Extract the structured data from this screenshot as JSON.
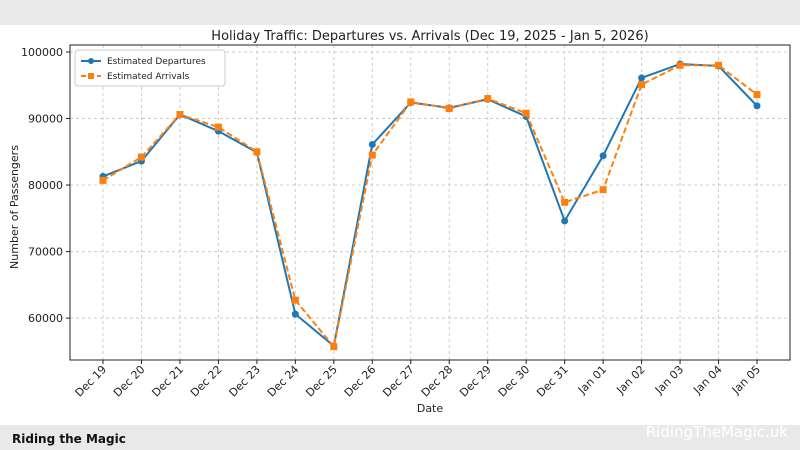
{
  "chart_data": {
    "type": "line",
    "title": "Holiday Traffic: Departures vs. Arrivals (Dec 19, 2025 - Jan 5, 2026)",
    "x_label": "Date",
    "y_label": "Number of Passengers",
    "categories": [
      "Dec 19",
      "Dec 20",
      "Dec 21",
      "Dec 22",
      "Dec 23",
      "Dec 24",
      "Dec 25",
      "Dec 26",
      "Dec 27",
      "Dec 28",
      "Dec 29",
      "Dec 30",
      "Dec 31",
      "Jan 01",
      "Jan 02",
      "Jan 03",
      "Jan 04",
      "Jan 05"
    ],
    "series": [
      {
        "name": "Estimated Departures",
        "color": "#1f77b4",
        "marker": "circle",
        "dashed": false,
        "values": [
          81300,
          83600,
          90600,
          88100,
          84900,
          60600,
          55800,
          86100,
          92400,
          91600,
          92900,
          90300,
          74600,
          84400,
          96100,
          98200,
          97900,
          91900
        ]
      },
      {
        "name": "Estimated Arrivals",
        "color": "#ff7f0e",
        "marker": "square",
        "dashed": true,
        "values": [
          80700,
          84200,
          90600,
          88700,
          85000,
          62700,
          55700,
          84500,
          92500,
          91500,
          93000,
          90800,
          77400,
          79300,
          95100,
          98000,
          98000,
          93600
        ]
      }
    ],
    "ylim": [
      53700,
      101050
    ],
    "yticks": [
      60000,
      70000,
      80000,
      90000,
      100000
    ],
    "grid": true,
    "legend": "upper-left"
  },
  "footer": {
    "brand": "Riding the Magic",
    "watermark": "RidingTheMagic.uk"
  }
}
